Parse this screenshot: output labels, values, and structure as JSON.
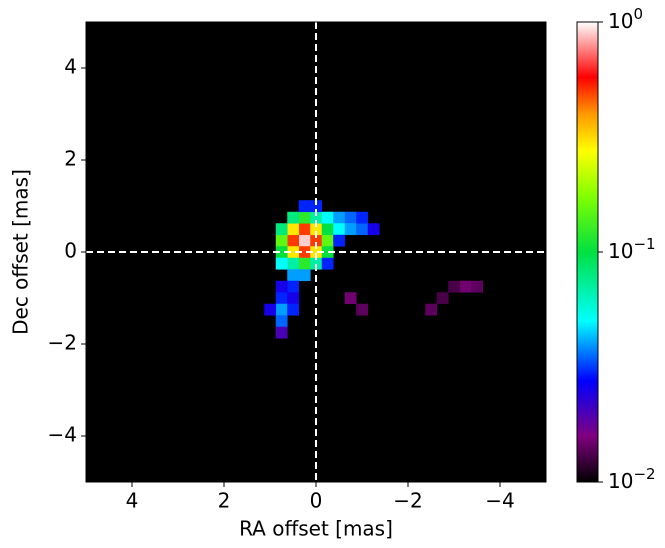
{
  "chart_data": {
    "type": "heatmap",
    "xlabel": "RA offset [mas]",
    "ylabel": "Dec offset [mas]",
    "xlim": [
      5,
      -5
    ],
    "ylim": [
      -5,
      5
    ],
    "xticks": [
      4,
      2,
      0,
      {
        "value": -2,
        "label": "−2"
      },
      {
        "value": -4,
        "label": "−4"
      }
    ],
    "yticks": [
      {
        "value": -4,
        "label": "−4"
      },
      {
        "value": -2,
        "label": "−2"
      },
      0,
      2,
      4
    ],
    "reference_lines": {
      "x": 0,
      "y": 0
    },
    "clim": [
      0.01,
      1
    ],
    "color_scale": "log",
    "cticks": [
      {
        "value": 0.01,
        "label": "10",
        "sup": "−2"
      },
      {
        "value": 0.1,
        "label": "10",
        "sup": "−1"
      },
      {
        "value": 1,
        "label": "10",
        "sup": "0"
      }
    ],
    "colormap": [
      {
        "at": 0,
        "color": "#000000"
      },
      {
        "at": 0.1,
        "color": "#800080"
      },
      {
        "at": 0.22,
        "color": "#0000ff"
      },
      {
        "at": 0.35,
        "color": "#00ffff"
      },
      {
        "at": 0.5,
        "color": "#00e040"
      },
      {
        "at": 0.62,
        "color": "#80ff00"
      },
      {
        "at": 0.72,
        "color": "#ffff00"
      },
      {
        "at": 0.8,
        "color": "#ff9900"
      },
      {
        "at": 0.88,
        "color": "#ff0000"
      },
      {
        "at": 1,
        "color": "#ffffff"
      }
    ],
    "x": [
      0.25,
      0.5,
      0,
      0.25,
      0.25,
      0.5,
      0,
      0.5,
      0,
      0.75,
      -0.25,
      0.25,
      0.25,
      0.75,
      0.75,
      -0.25,
      -0.25,
      0.5,
      0,
      0.5,
      0,
      0.75,
      0.5,
      0.25,
      -0.25,
      0.25,
      0,
      -0.5,
      -0.5,
      -0.75,
      -0.75,
      -1,
      -1,
      -1.25,
      -0.5,
      -0.25,
      0.5,
      0.75,
      0.75,
      0.5,
      0.75,
      0.5,
      0.75,
      1,
      0.75,
      -0.75,
      -1,
      -2.5,
      -2.75,
      -3.25,
      -3.5,
      -3
    ],
    "y": [
      0.25,
      0.25,
      0.25,
      0.5,
      0,
      0.5,
      0.5,
      0,
      0,
      0.25,
      0.25,
      0.75,
      -0.25,
      0.5,
      0,
      0.5,
      0,
      0.75,
      0.75,
      -0.25,
      -0.25,
      -0.25,
      -0.5,
      -0.5,
      0.75,
      1,
      1,
      0.75,
      0.5,
      0.75,
      0.5,
      0.5,
      0.75,
      0.5,
      0.25,
      -0.25,
      -0.75,
      -0.75,
      -1,
      -1,
      -1.25,
      -1.25,
      -1.5,
      -1.25,
      -1.75,
      -1,
      -1.25,
      -1.25,
      -1,
      -0.75,
      -0.75,
      -0.75
    ],
    "values": [
      0.9,
      0.5,
      0.5,
      0.5,
      0.5,
      0.3,
      0.3,
      0.3,
      0.3,
      0.15,
      0.15,
      0.12,
      0.12,
      0.08,
      0.1,
      0.1,
      0.1,
      0.08,
      0.07,
      0.07,
      0.07,
      0.05,
      0.04,
      0.04,
      0.05,
      0.03,
      0.03,
      0.04,
      0.05,
      0.035,
      0.04,
      0.035,
      0.03,
      0.025,
      0.03,
      0.03,
      0.03,
      0.025,
      0.03,
      0.025,
      0.04,
      0.03,
      0.035,
      0.025,
      0.02,
      0.015,
      0.014,
      0.014,
      0.013,
      0.015,
      0.014,
      0.013
    ]
  }
}
